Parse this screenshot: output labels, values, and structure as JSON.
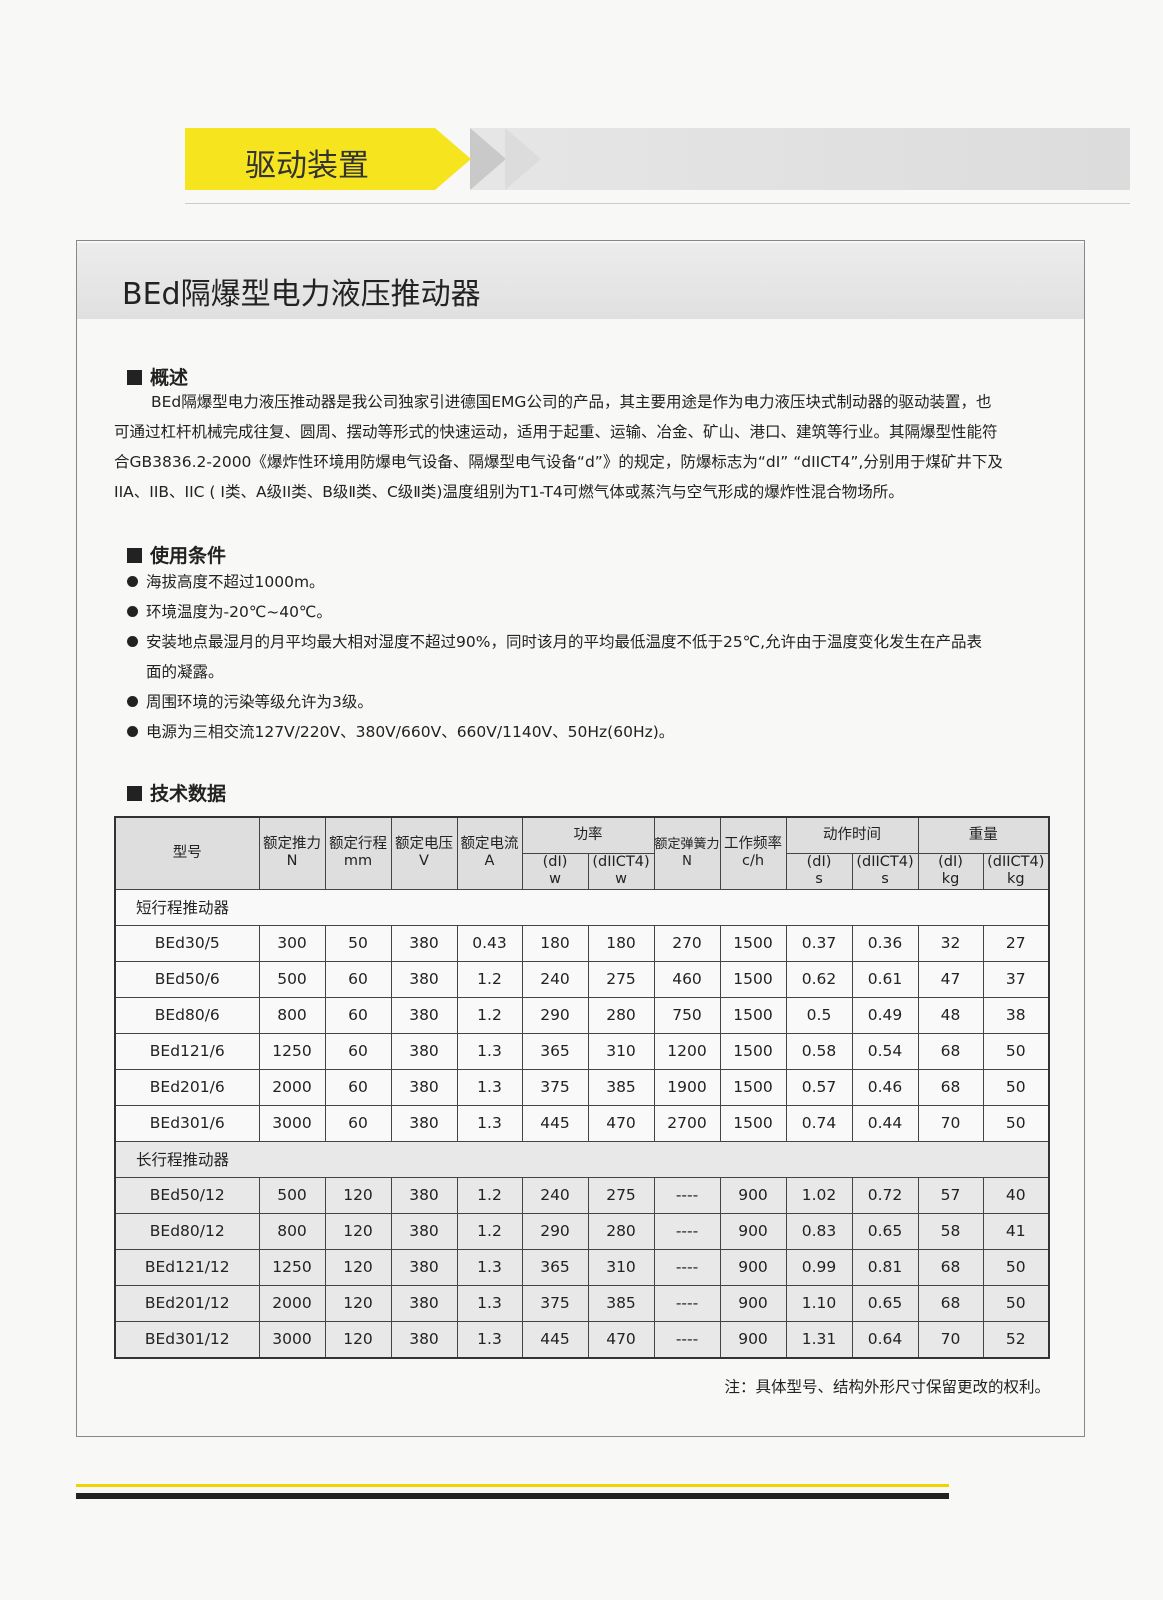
{
  "banner": "驱动装置",
  "title": "BEd隔爆型电力液压推动器",
  "overview": {
    "heading": "概述",
    "text": "BEd隔爆型电力液压推动器是我公司独家引进德国EMG公司的产品，其主要用途是作为电力液压块式制动器的驱动装置，也可通过杠杆机械完成往复、圆周、摆动等形式的快速运动，适用于起重、运输、冶金、矿山、港口、建筑等行业。其隔爆型性能符合GB3836.2-2000《爆炸性环境用防爆电气设备、隔爆型电气设备“d”》的规定，防爆标志为“dI” “dIICT4”,分别用于煤矿井下及IIA、IIB、IIC ( I类、A级II类、B级Ⅱ类、C级Ⅱ类)温度组别为T1-T4可燃气体或蒸汽与空气形成的爆炸性混合物场所。"
  },
  "conditions": {
    "heading": "使用条件",
    "items": [
      "海拔高度不超过1000m。",
      "环境温度为-20℃~40℃。",
      "安装地点最湿月的月平均最大相对湿度不超过90%，同时该月的平均最低温度不低于25℃,允许由于温度变化发生在产品表面的凝露。",
      "周围环境的污染等级允许为3级。",
      "电源为三相交流127V/220V、380V/660V、660V/1140V、50Hz(60Hz)。"
    ]
  },
  "tech": {
    "heading": "技术数据",
    "headers": {
      "model": "型号",
      "thrust": "额定推力",
      "thrust_u": "N",
      "stroke": "额定行程",
      "stroke_u": "mm",
      "voltage": "额定电压",
      "voltage_u": "V",
      "current": "额定电流",
      "current_u": "A",
      "power": "功率",
      "p_dI": "(dI)",
      "p_dI_u": "w",
      "p_dII": "(dIICT4)",
      "p_dII_u": "w",
      "spring": "额定弹簧力",
      "spring_u": "N",
      "freq": "工作频率",
      "freq_u": "c/h",
      "time": "动作时间",
      "t_dI": "(dI)",
      "t_dI_u": "s",
      "t_dII": "(dIICT4)",
      "t_dII_u": "s",
      "weight": "重量",
      "w_dI": "(dI)",
      "w_dI_u": "kg",
      "w_dII": "(dIICT4)",
      "w_dII_u": "kg"
    },
    "groups": [
      {
        "label": "短行程推动器",
        "rows": [
          [
            "BEd30/5",
            "300",
            "50",
            "380",
            "0.43",
            "180",
            "180",
            "270",
            "1500",
            "0.37",
            "0.36",
            "32",
            "27"
          ],
          [
            "BEd50/6",
            "500",
            "60",
            "380",
            "1.2",
            "240",
            "275",
            "460",
            "1500",
            "0.62",
            "0.61",
            "47",
            "37"
          ],
          [
            "BEd80/6",
            "800",
            "60",
            "380",
            "1.2",
            "290",
            "280",
            "750",
            "1500",
            "0.5",
            "0.49",
            "48",
            "38"
          ],
          [
            "BEd121/6",
            "1250",
            "60",
            "380",
            "1.3",
            "365",
            "310",
            "1200",
            "1500",
            "0.58",
            "0.54",
            "68",
            "50"
          ],
          [
            "BEd201/6",
            "2000",
            "60",
            "380",
            "1.3",
            "375",
            "385",
            "1900",
            "1500",
            "0.57",
            "0.46",
            "68",
            "50"
          ],
          [
            "BEd301/6",
            "3000",
            "60",
            "380",
            "1.3",
            "445",
            "470",
            "2700",
            "1500",
            "0.74",
            "0.44",
            "70",
            "50"
          ]
        ]
      },
      {
        "label": "长行程推动器",
        "rows": [
          [
            "BEd50/12",
            "500",
            "120",
            "380",
            "1.2",
            "240",
            "275",
            "----",
            "900",
            "1.02",
            "0.72",
            "57",
            "40"
          ],
          [
            "BEd80/12",
            "800",
            "120",
            "380",
            "1.2",
            "290",
            "280",
            "----",
            "900",
            "0.83",
            "0.65",
            "58",
            "41"
          ],
          [
            "BEd121/12",
            "1250",
            "120",
            "380",
            "1.3",
            "365",
            "310",
            "----",
            "900",
            "0.99",
            "0.81",
            "68",
            "50"
          ],
          [
            "BEd201/12",
            "2000",
            "120",
            "380",
            "1.3",
            "375",
            "385",
            "----",
            "900",
            "1.10",
            "0.65",
            "68",
            "50"
          ],
          [
            "BEd301/12",
            "3000",
            "120",
            "380",
            "1.3",
            "445",
            "470",
            "----",
            "900",
            "1.31",
            "0.64",
            "70",
            "52"
          ]
        ]
      }
    ]
  },
  "note": "注：具体型号、结构外形尺寸保留更改的权利。"
}
